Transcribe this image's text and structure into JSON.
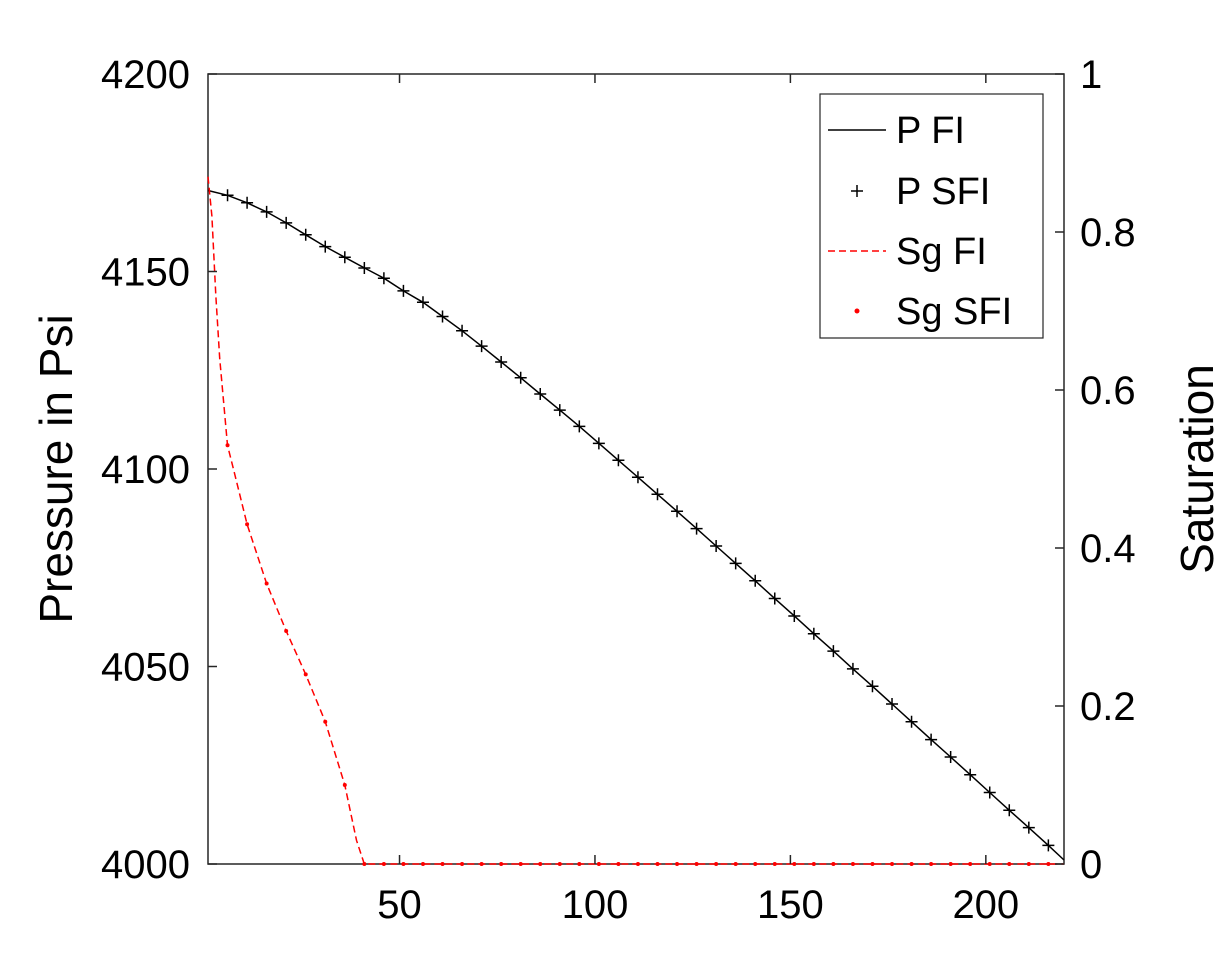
{
  "chart_data": {
    "type": "line",
    "ylabel_left": "Pressure in Psi",
    "ylabel_right": "Saturation",
    "xlim": [
      1,
      220
    ],
    "ylim_left": [
      4000,
      4200
    ],
    "ylim_right": [
      0,
      1
    ],
    "xticks": [
      50,
      100,
      150,
      200
    ],
    "yticks_left": [
      4000,
      4050,
      4100,
      4150,
      4200
    ],
    "yticks_right": [
      0,
      0.2,
      0.4,
      0.6,
      0.8,
      1
    ],
    "ytick_labels_right": [
      "0",
      "0.2",
      "0.4",
      "0.6",
      "0.8",
      "1"
    ],
    "grid": false,
    "legend_position": "top-right",
    "series": [
      {
        "name": "P FI",
        "axis": "left",
        "style": "solid-line",
        "color": "#000000",
        "x": [
          1,
          6,
          11,
          16,
          21,
          26,
          31,
          36,
          41,
          46,
          51,
          56,
          61,
          66,
          71,
          76,
          81,
          86,
          91,
          96,
          101,
          106,
          111,
          116,
          121,
          126,
          131,
          136,
          141,
          146,
          151,
          156,
          161,
          166,
          171,
          176,
          181,
          186,
          191,
          196,
          201,
          206,
          211,
          216,
          220
        ],
        "y": [
          4170.5,
          4169.3,
          4167.4,
          4165.1,
          4162.3,
          4159.3,
          4156.3,
          4153.6,
          4150.9,
          4148.3,
          4145.1,
          4142.2,
          4138.6,
          4135.0,
          4131.1,
          4127.1,
          4123.1,
          4119.0,
          4114.9,
          4110.8,
          4106.5,
          4102.2,
          4097.9,
          4093.6,
          4089.3,
          4084.9,
          4080.5,
          4076.1,
          4071.7,
          4067.2,
          4062.8,
          4058.3,
          4053.9,
          4049.4,
          4045.0,
          4040.5,
          4036.0,
          4031.5,
          4027.1,
          4022.6,
          4018.1,
          4013.6,
          4009.2,
          4004.7,
          4001.0
        ]
      },
      {
        "name": "P SFI",
        "axis": "left",
        "style": "plus-marker",
        "color": "#000000",
        "x": [
          6,
          11,
          16,
          21,
          26,
          31,
          36,
          41,
          46,
          51,
          56,
          61,
          66,
          71,
          76,
          81,
          86,
          91,
          96,
          101,
          106,
          111,
          116,
          121,
          126,
          131,
          136,
          141,
          146,
          151,
          156,
          161,
          166,
          171,
          176,
          181,
          186,
          191,
          196,
          201,
          206,
          211,
          216
        ],
        "y": [
          4169.3,
          4167.4,
          4165.1,
          4162.3,
          4159.3,
          4156.3,
          4153.6,
          4150.9,
          4148.3,
          4145.1,
          4142.2,
          4138.6,
          4135.0,
          4131.1,
          4127.1,
          4123.1,
          4119.0,
          4114.9,
          4110.8,
          4106.5,
          4102.2,
          4097.9,
          4093.6,
          4089.3,
          4084.9,
          4080.5,
          4076.1,
          4071.7,
          4067.2,
          4062.8,
          4058.3,
          4053.9,
          4049.4,
          4045.0,
          4040.5,
          4036.0,
          4031.5,
          4027.1,
          4022.6,
          4018.1,
          4013.6,
          4009.2,
          4004.7
        ]
      },
      {
        "name": "Sg FI",
        "axis": "right",
        "style": "dashed-line",
        "color": "#ff0000",
        "x": [
          1,
          2,
          3,
          4,
          6,
          8,
          11,
          16,
          21,
          26,
          31,
          36,
          39,
          41,
          45,
          60,
          100,
          150,
          200,
          220
        ],
        "y": [
          0.87,
          0.82,
          0.72,
          0.64,
          0.53,
          0.49,
          0.43,
          0.355,
          0.295,
          0.24,
          0.18,
          0.1,
          0.03,
          0,
          0,
          0,
          0,
          0,
          0,
          0
        ]
      },
      {
        "name": "Sg SFI",
        "axis": "right",
        "style": "dot-marker",
        "color": "#ff0000",
        "x": [
          6,
          11,
          16,
          21,
          26,
          31,
          36,
          41,
          46,
          51,
          56,
          61,
          66,
          71,
          76,
          81,
          86,
          91,
          96,
          101,
          106,
          111,
          116,
          121,
          126,
          131,
          136,
          141,
          146,
          151,
          156,
          161,
          166,
          171,
          176,
          181,
          186,
          191,
          196,
          201,
          206,
          211,
          216
        ],
        "y": [
          0.53,
          0.43,
          0.355,
          0.295,
          0.24,
          0.18,
          0.1,
          0,
          0,
          0,
          0,
          0,
          0,
          0,
          0,
          0,
          0,
          0,
          0,
          0,
          0,
          0,
          0,
          0,
          0,
          0,
          0,
          0,
          0,
          0,
          0,
          0,
          0,
          0,
          0,
          0,
          0,
          0,
          0,
          0,
          0,
          0,
          0
        ]
      }
    ]
  }
}
